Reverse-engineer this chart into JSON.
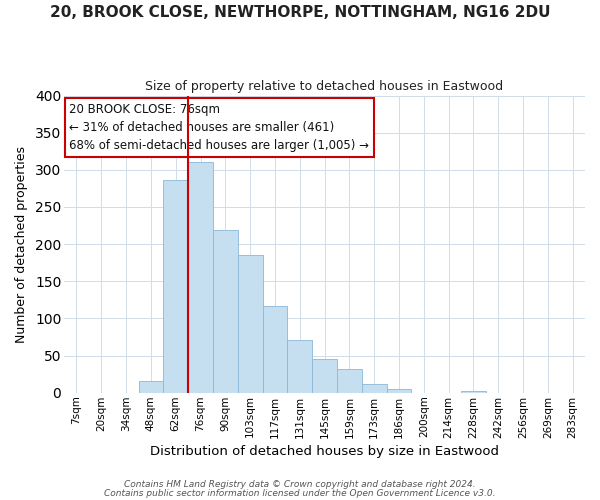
{
  "title_line1": "20, BROOK CLOSE, NEWTHORPE, NOTTINGHAM, NG16 2DU",
  "title_line2": "Size of property relative to detached houses in Eastwood",
  "xlabel": "Distribution of detached houses by size in Eastwood",
  "ylabel": "Number of detached properties",
  "bar_color": "#c6dff0",
  "bar_edge_color": "#8ab8d8",
  "vline_color": "#cc0000",
  "annotation_title": "20 BROOK CLOSE: 76sqm",
  "annotation_line1": "← 31% of detached houses are smaller (461)",
  "annotation_line2": "68% of semi-detached houses are larger (1,005) →",
  "annotation_box_color": "#ffffff",
  "annotation_box_edge": "#cc0000",
  "bin_labels": [
    "7sqm",
    "20sqm",
    "34sqm",
    "48sqm",
    "62sqm",
    "76sqm",
    "90sqm",
    "103sqm",
    "117sqm",
    "131sqm",
    "145sqm",
    "159sqm",
    "173sqm",
    "186sqm",
    "200sqm",
    "214sqm",
    "228sqm",
    "242sqm",
    "256sqm",
    "269sqm",
    "283sqm"
  ],
  "bar_heights": [
    0,
    0,
    0,
    16,
    286,
    311,
    219,
    186,
    117,
    71,
    45,
    32,
    11,
    5,
    0,
    0,
    2,
    0,
    0,
    0,
    0
  ],
  "ylim": [
    0,
    400
  ],
  "yticks": [
    0,
    50,
    100,
    150,
    200,
    250,
    300,
    350,
    400
  ],
  "footer_line1": "Contains HM Land Registry data © Crown copyright and database right 2024.",
  "footer_line2": "Contains public sector information licensed under the Open Government Licence v3.0.",
  "background_color": "#ffffff",
  "grid_color": "#d0dce8"
}
